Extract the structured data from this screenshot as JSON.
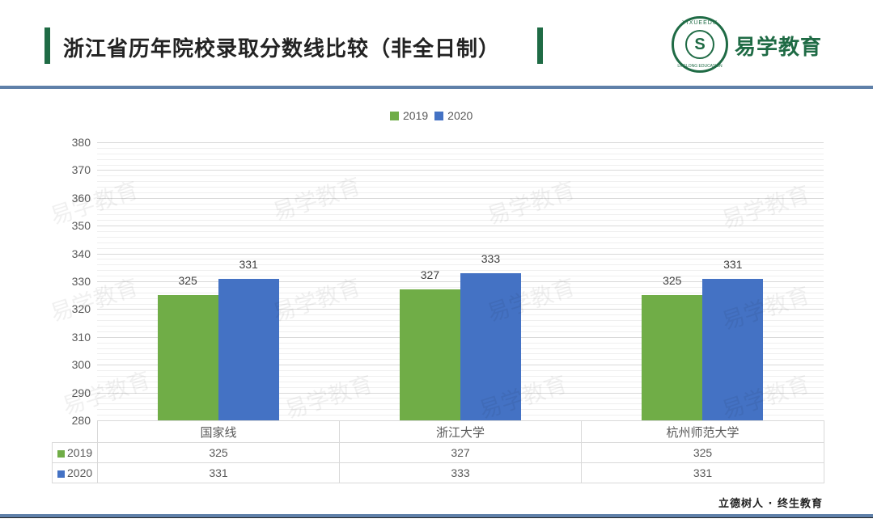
{
  "header": {
    "title": "浙江省历年院校录取分数线比较（非全日制）",
    "brand": "易学教育",
    "logo_ring_text": "YIXUEEDU",
    "logo_bottom_text": "LIFELONG EDUCATION",
    "logo_center": "S",
    "accent_color": "#1f6b45"
  },
  "footer": {
    "slogan": "立德树人 · 终生教育"
  },
  "watermark": "易学教育",
  "legend": [
    {
      "label": "2019",
      "color": "#70ad47"
    },
    {
      "label": "2020",
      "color": "#4472c4"
    }
  ],
  "table": {
    "categories": [
      "国家线",
      "浙江大学",
      "杭州师范大学"
    ],
    "rows": [
      {
        "label": "2019",
        "values": [
          "325",
          "327",
          "325"
        ]
      },
      {
        "label": "2020",
        "values": [
          "331",
          "333",
          "331"
        ]
      }
    ]
  },
  "chart_data": {
    "type": "bar",
    "title": "浙江省历年院校录取分数线比较（非全日制）",
    "categories": [
      "国家线",
      "浙江大学",
      "杭州师范大学"
    ],
    "series": [
      {
        "name": "2019",
        "values": [
          325,
          327,
          325
        ],
        "color": "#70ad47"
      },
      {
        "name": "2020",
        "values": [
          331,
          333,
          331
        ],
        "color": "#4472c4"
      }
    ],
    "xlabel": "",
    "ylabel": "",
    "ylim": [
      280,
      380
    ],
    "yticks": [
      "380",
      "370",
      "360",
      "350",
      "340",
      "330",
      "320",
      "310",
      "300",
      "290",
      "280"
    ],
    "grid": true,
    "legend_position": "top",
    "data_labels": true,
    "data_table": true
  }
}
